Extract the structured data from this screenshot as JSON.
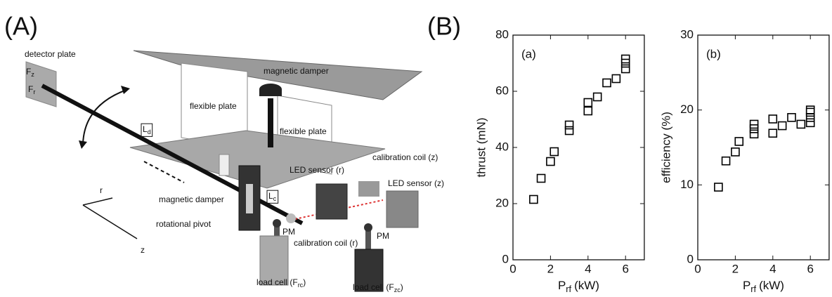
{
  "panels": {
    "A": "(A)",
    "B": "(B)"
  },
  "diagram": {
    "labels": [
      {
        "text": "detector plate"
      },
      {
        "text": "F",
        "sub": "z"
      },
      {
        "text": "F",
        "sub": "r"
      },
      {
        "text": "magnetic damper"
      },
      {
        "text": "flexible plate"
      },
      {
        "text": "flexible plate"
      },
      {
        "text": "L",
        "sub": "d"
      },
      {
        "text": "r"
      },
      {
        "text": "z"
      },
      {
        "text": "magnetic damper"
      },
      {
        "text": "rotational pivot"
      },
      {
        "text": "L",
        "sub": "c"
      },
      {
        "text": "PM"
      },
      {
        "text": "calibration coil (r)"
      },
      {
        "text": "load cell (F",
        "sub": "rc",
        "tail": ")"
      },
      {
        "text": "PM"
      },
      {
        "text": "load cell (F",
        "sub": "zc",
        "tail": ")"
      },
      {
        "text": "LED sensor (r)"
      },
      {
        "text": "calibration coil (z)"
      },
      {
        "text": "LED sensor (z)"
      }
    ]
  },
  "chart_data": [
    {
      "type": "scatter",
      "panel_label": "(a)",
      "y_label": "thrust (mN)",
      "x_label": {
        "main": "P",
        "sub": "rf",
        "unit": "(kW)"
      },
      "x": [
        1.1,
        1.5,
        2,
        2.2,
        3,
        3,
        4,
        4,
        4.5,
        5,
        5.5,
        6,
        6,
        6
      ],
      "values": [
        21.5,
        29,
        35,
        38.5,
        46,
        48,
        53,
        56,
        58,
        63,
        64.5,
        68,
        70,
        71.5
      ],
      "xlim": [
        0,
        7
      ],
      "ylim": [
        0,
        80
      ],
      "xticks": [
        0,
        2,
        4,
        6
      ],
      "yticks": [
        0,
        20,
        40,
        60,
        80
      ],
      "color": "#000000"
    },
    {
      "type": "scatter",
      "panel_label": "(b)",
      "y_label": "efficiency (%)",
      "x_label": {
        "main": "P",
        "sub": "rf",
        "unit": "(kW)"
      },
      "x": [
        1.1,
        1.5,
        2,
        2.2,
        3,
        3,
        3,
        4,
        4,
        4.5,
        5,
        5.5,
        6,
        6,
        6,
        6
      ],
      "values": [
        9.7,
        13.2,
        14.4,
        15.8,
        16.8,
        17.5,
        18.1,
        16.9,
        18.8,
        17.9,
        19.0,
        18.1,
        18.3,
        19.0,
        19.7,
        20.0
      ],
      "xlim": [
        0,
        7
      ],
      "ylim": [
        0,
        30
      ],
      "xticks": [
        0,
        2,
        4,
        6
      ],
      "yticks": [
        0,
        10,
        20,
        30
      ],
      "color": "#000000"
    }
  ]
}
